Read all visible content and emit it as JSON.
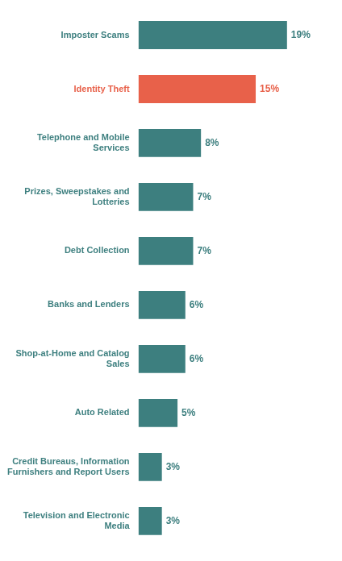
{
  "chart_data": {
    "type": "bar",
    "orientation": "horizontal",
    "categories": [
      "Television and Electronic\nMedia",
      "Credit Bureaus, Information\nFurnishers and Report Users",
      "Auto Related",
      "Shop-at-Home and Catalog\nSales",
      "Banks and Lenders",
      "Debt Collection",
      "Prizes, Sweepstakes and\nLotteries",
      "Telephone and Mobile\nServices",
      "Identity Theft",
      "Imposter Scams"
    ],
    "values": [
      3,
      3,
      5,
      6,
      6,
      7,
      7,
      8,
      15,
      19
    ],
    "value_labels": [
      "3%",
      "3%",
      "5%",
      "6%",
      "6%",
      "7%",
      "7%",
      "8%",
      "15%",
      "19%"
    ],
    "colors": [
      "#3d7f7f",
      "#3d7f7f",
      "#3d7f7f",
      "#3d7f7f",
      "#3d7f7f",
      "#3d7f7f",
      "#3d7f7f",
      "#3d7f7f",
      "#e8614a",
      "#3d7f7f"
    ],
    "xlim": [
      0,
      25
    ],
    "data_labels": true,
    "tick_labels": "y",
    "grid": false
  }
}
